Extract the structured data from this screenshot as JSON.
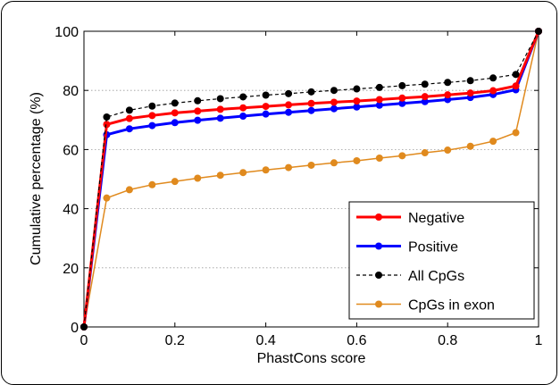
{
  "chart_data": {
    "type": "line",
    "xlabel": "PhastCons score",
    "ylabel": "Cumulative percentage (%)",
    "xlim": [
      0,
      1
    ],
    "ylim": [
      0,
      100
    ],
    "xticks": [
      0,
      0.2,
      0.4,
      0.6,
      0.8,
      1
    ],
    "xtick_labels": [
      "0",
      "0.2",
      "0.4",
      "0.6",
      "0.8",
      "1"
    ],
    "yticks": [
      0,
      20,
      40,
      60,
      80,
      100
    ],
    "ytick_labels": [
      "0",
      "20",
      "40",
      "60",
      "80",
      "100"
    ],
    "grid": "horizontal dotted",
    "legend_position": "lower-right",
    "x": [
      0,
      0.05,
      0.1,
      0.15,
      0.2,
      0.25,
      0.3,
      0.35,
      0.4,
      0.45,
      0.5,
      0.55,
      0.6,
      0.65,
      0.7,
      0.75,
      0.8,
      0.85,
      0.9,
      0.95,
      1
    ],
    "series": [
      {
        "name": "Negative",
        "color": "#ff0000",
        "style": "solid",
        "values": [
          0,
          68.5,
          70.5,
          71.5,
          72.4,
          73.0,
          73.6,
          74.1,
          74.6,
          75.1,
          75.6,
          76.0,
          76.4,
          76.9,
          77.4,
          77.9,
          78.5,
          79.1,
          79.9,
          81.5,
          100
        ]
      },
      {
        "name": "Positive",
        "color": "#0000ff",
        "style": "solid",
        "values": [
          0,
          65.0,
          67.0,
          68.1,
          69.1,
          69.9,
          70.6,
          71.3,
          72.0,
          72.6,
          73.2,
          73.8,
          74.4,
          75.0,
          75.6,
          76.2,
          76.9,
          77.6,
          78.6,
          80.2,
          100
        ]
      },
      {
        "name": "All CpGs",
        "color": "#000000",
        "style": "dashed",
        "values": [
          0,
          71.0,
          73.3,
          74.7,
          75.7,
          76.5,
          77.2,
          77.8,
          78.4,
          78.9,
          79.5,
          80.0,
          80.5,
          81.0,
          81.6,
          82.1,
          82.7,
          83.3,
          84.2,
          85.4,
          100
        ]
      },
      {
        "name": "CpGs in exon",
        "color": "#e08a1e",
        "style": "solid",
        "values": [
          0,
          43.6,
          46.4,
          48.1,
          49.2,
          50.3,
          51.3,
          52.2,
          53.1,
          53.9,
          54.7,
          55.5,
          56.2,
          57.1,
          57.9,
          58.9,
          59.8,
          61.1,
          62.8,
          65.7,
          100
        ]
      }
    ]
  }
}
